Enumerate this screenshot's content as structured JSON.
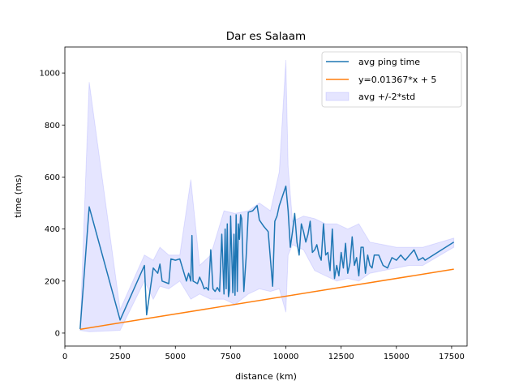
{
  "chart_data": {
    "type": "line",
    "title": "Dar es Salaam",
    "xlabel": "distance (km)",
    "ylabel": "time (ms)",
    "xlim": [
      0,
      18200
    ],
    "ylim": [
      -50,
      1100
    ],
    "xticks": [
      0,
      2500,
      5000,
      7500,
      10000,
      12500,
      15000,
      17500
    ],
    "yticks": [
      0,
      200,
      400,
      600,
      800,
      1000
    ],
    "grid": false,
    "legend_position": "upper right",
    "colors": {
      "avg": "#1f77b4",
      "fit": "#ff7f0e",
      "band": "#0000ff"
    },
    "series": [
      {
        "name": "avg ping time",
        "x": [
          690,
          1100,
          2500,
          3600,
          3700,
          4000,
          4200,
          4300,
          4400,
          4700,
          4800,
          5000,
          5200,
          5500,
          5600,
          5700,
          5750,
          5800,
          5900,
          6000,
          6100,
          6200,
          6300,
          6400,
          6500,
          6600,
          6700,
          6800,
          6900,
          7000,
          7100,
          7200,
          7250,
          7300,
          7350,
          7400,
          7450,
          7500,
          7550,
          7600,
          7650,
          7700,
          7750,
          7800,
          7850,
          7900,
          7950,
          8000,
          8100,
          8200,
          8300,
          8500,
          8700,
          8800,
          9000,
          9200,
          9400,
          9500,
          9600,
          9700,
          10000,
          10100,
          10200,
          10300,
          10400,
          10500,
          10600,
          10700,
          10800,
          10900,
          11000,
          11100,
          11200,
          11300,
          11400,
          11500,
          11600,
          11700,
          11800,
          11900,
          12000,
          12100,
          12200,
          12300,
          12400,
          12500,
          12600,
          12700,
          12800,
          12900,
          13000,
          13100,
          13200,
          13300,
          13400,
          13500,
          13600,
          13700,
          13800,
          13900,
          14000,
          14200,
          14400,
          14600,
          14800,
          15000,
          15200,
          15400,
          15600,
          15800,
          16000,
          16200,
          16300,
          17600
        ],
        "y": [
          15,
          485,
          50,
          260,
          70,
          250,
          230,
          265,
          200,
          190,
          285,
          280,
          285,
          200,
          230,
          200,
          375,
          200,
          195,
          190,
          215,
          195,
          170,
          175,
          165,
          320,
          170,
          160,
          175,
          160,
          380,
          150,
          400,
          170,
          420,
          140,
          165,
          450,
          300,
          155,
          380,
          145,
          455,
          160,
          420,
          360,
          455,
          440,
          160,
          290,
          465,
          470,
          490,
          435,
          410,
          390,
          180,
          430,
          450,
          490,
          565,
          470,
          330,
          390,
          460,
          350,
          300,
          420,
          390,
          350,
          380,
          430,
          310,
          320,
          340,
          300,
          280,
          420,
          300,
          310,
          240,
          400,
          210,
          260,
          220,
          310,
          250,
          345,
          230,
          270,
          370,
          260,
          290,
          220,
          330,
          330,
          230,
          300,
          260,
          250,
          300,
          300,
          260,
          250,
          290,
          280,
          300,
          280,
          300,
          320,
          280,
          290,
          280,
          350
        ]
      },
      {
        "name": "y=0.01367*x + 5",
        "slope": 0.01367,
        "intercept": 5,
        "x": [
          690,
          17600
        ]
      },
      {
        "name": "avg +/-2*std",
        "x": [
          690,
          1100,
          2500,
          3600,
          4000,
          4300,
          4700,
          5200,
          5700,
          6100,
          6600,
          7200,
          7700,
          8300,
          8800,
          9300,
          9700,
          10000,
          10100,
          10300,
          10800,
          11300,
          11800,
          12300,
          12800,
          13300,
          13800,
          14400,
          15000,
          15600,
          16200,
          17600
        ],
        "upper": [
          20,
          965,
          90,
          300,
          280,
          330,
          300,
          300,
          590,
          260,
          300,
          470,
          460,
          470,
          500,
          470,
          620,
          1050,
          640,
          430,
          450,
          440,
          420,
          420,
          400,
          420,
          350,
          340,
          330,
          330,
          330,
          365
        ],
        "lower": [
          10,
          5,
          10,
          200,
          130,
          180,
          170,
          200,
          130,
          150,
          130,
          130,
          110,
          150,
          170,
          160,
          170,
          80,
          300,
          340,
          320,
          240,
          220,
          200,
          210,
          200,
          230,
          240,
          250,
          260,
          260,
          330
        ]
      }
    ]
  }
}
